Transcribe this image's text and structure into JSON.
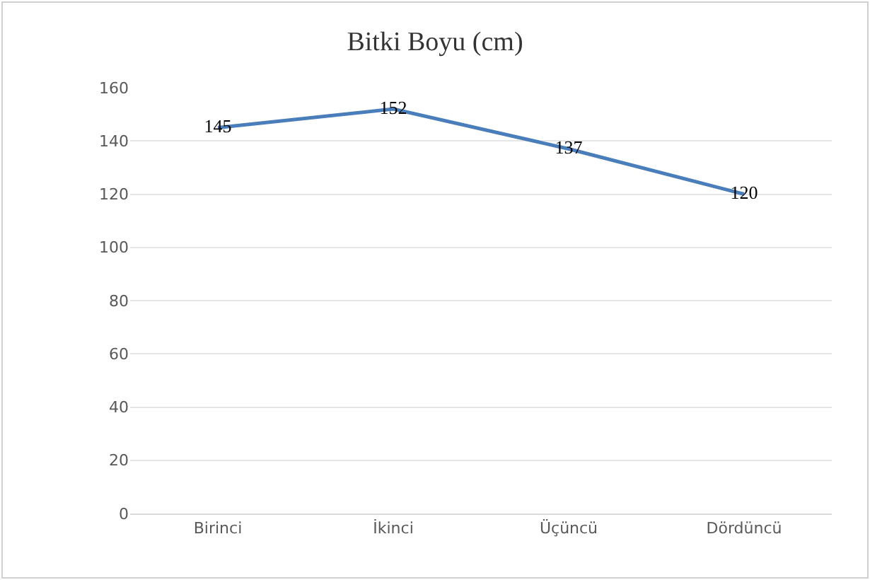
{
  "chart_data": {
    "type": "line",
    "title": "Bitki Boyu (cm)",
    "categories": [
      "Birinci",
      "İkinci",
      "Üçüncü",
      "Dördüncü"
    ],
    "series": [
      {
        "color": "#4a7ebb",
        "values": [
          145,
          152,
          137,
          120
        ]
      }
    ],
    "ylim": [
      0,
      160
    ],
    "yticks": [
      0,
      20,
      40,
      60,
      80,
      100,
      120,
      140,
      160
    ],
    "grid": "y",
    "data_labels": true,
    "marker": "none",
    "line_style": "solid"
  }
}
